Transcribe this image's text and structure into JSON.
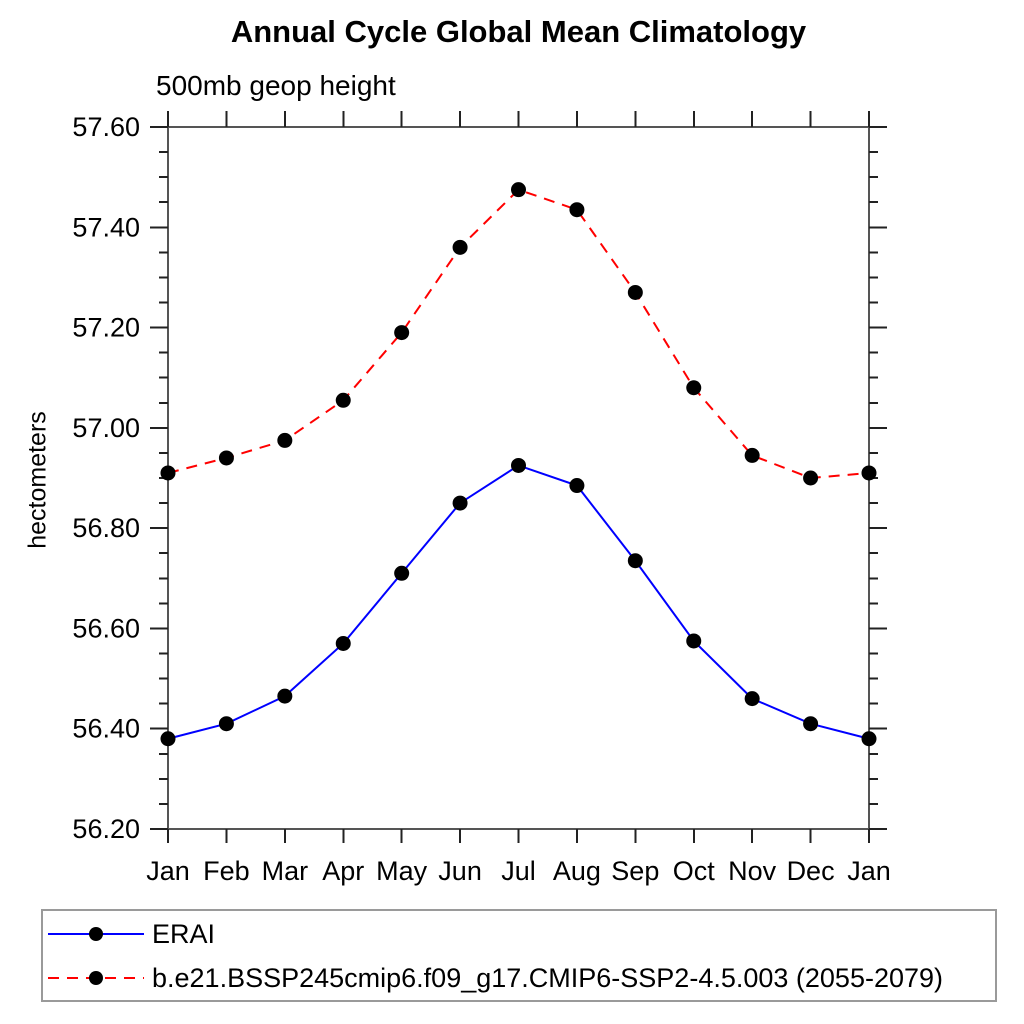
{
  "title": "Annual Cycle Global Mean Climatology",
  "subtitle": "500mb geop height",
  "y_axis": {
    "label": "hectometers",
    "tick_labels": [
      "57.60",
      "57.40",
      "57.20",
      "57.00",
      "56.80",
      "56.60",
      "56.40",
      "56.20"
    ],
    "major_step": 0.2,
    "minor_step": 0.05
  },
  "x_axis": {
    "tick_labels": [
      "Jan",
      "Feb",
      "Mar",
      "Apr",
      "May",
      "Jun",
      "Jul",
      "Aug",
      "Sep",
      "Oct",
      "Nov",
      "Dec",
      "Jan"
    ]
  },
  "chart_data": {
    "type": "line",
    "title": "Annual Cycle Global Mean Climatology",
    "subtitle": "500mb geop height",
    "xlabel": "",
    "ylabel": "hectometers",
    "ylim": [
      56.2,
      57.6
    ],
    "y_major_step": 0.2,
    "y_minor_step": 0.05,
    "grid": false,
    "legend_position": "bottom",
    "categories": [
      "Jan",
      "Feb",
      "Mar",
      "Apr",
      "May",
      "Jun",
      "Jul",
      "Aug",
      "Sep",
      "Oct",
      "Nov",
      "Dec",
      "Jan"
    ],
    "series": [
      {
        "name": "ERAI",
        "color": "#0000ff",
        "line_style": "solid",
        "marker": "circle",
        "marker_color": "#000000",
        "values": [
          56.38,
          56.41,
          56.465,
          56.57,
          56.71,
          56.85,
          56.925,
          56.885,
          56.735,
          56.575,
          56.46,
          56.41,
          56.38
        ]
      },
      {
        "name": "b.e21.BSSP245cmip6.f09_g17.CMIP6-SSP2-4.5.003 (2055-2079)",
        "color": "#ff0000",
        "line_style": "dashed",
        "marker": "circle",
        "marker_color": "#000000",
        "values": [
          56.91,
          56.94,
          56.975,
          57.055,
          57.19,
          57.36,
          57.475,
          57.435,
          57.27,
          57.08,
          56.945,
          56.9,
          56.91
        ]
      }
    ]
  },
  "colors": {
    "axis_frame": "#555555",
    "tick": "#222222",
    "legend_border": "#9a9a9a"
  }
}
